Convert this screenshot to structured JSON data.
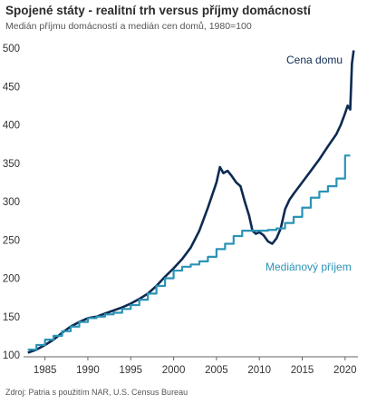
{
  "chart_data": {
    "type": "line",
    "title": "Spojené státy - realitní trh versus příjmy domácností",
    "subtitle": "Medián příjmu domácností a medián cen domů, 1980=100",
    "source": "Zdroj: Patria s použitím NAR, U.S. Census Bureau",
    "xlabel": "",
    "ylabel": "",
    "xlim": [
      1982.5,
      2021.5
    ],
    "ylim": [
      100,
      500
    ],
    "xticks": [
      1985,
      1990,
      1995,
      2000,
      2005,
      2010,
      2015,
      2020
    ],
    "yticks": [
      100,
      150,
      200,
      250,
      300,
      350,
      400,
      450,
      500
    ],
    "grid": false,
    "colors": {
      "house": "#0d2a52",
      "income": "#2a93b6"
    },
    "series": [
      {
        "name": "Cena domu",
        "style": "line",
        "x": [
          1983,
          1984,
          1985,
          1986,
          1987,
          1988,
          1989,
          1990,
          1991,
          1992,
          1993,
          1994,
          1995,
          1996,
          1997,
          1998,
          1999,
          2000,
          2001,
          2002,
          2003,
          2004,
          2005,
          2005.4,
          2005.8,
          2006.3,
          2006.8,
          2007.3,
          2007.8,
          2008.3,
          2008.8,
          2009.2,
          2009.6,
          2010,
          2010.5,
          2011,
          2011.5,
          2012,
          2012.5,
          2013,
          2013.5,
          2014,
          2015,
          2016,
          2017,
          2018,
          2019,
          2019.5,
          2020,
          2020.3,
          2020.6,
          2020.8,
          2021
        ],
        "values": [
          103,
          107,
          113,
          120,
          129,
          137,
          143,
          148,
          150,
          154,
          158,
          162,
          167,
          173,
          180,
          190,
          202,
          213,
          225,
          240,
          262,
          292,
          325,
          345,
          337,
          340,
          333,
          325,
          320,
          300,
          282,
          262,
          258,
          260,
          256,
          248,
          245,
          252,
          265,
          290,
          302,
          310,
          325,
          340,
          355,
          372,
          388,
          400,
          415,
          425,
          420,
          480,
          497
        ]
      },
      {
        "name": "Mediánový příjem",
        "style": "step",
        "x": [
          1983,
          1984,
          1985,
          1986,
          1987,
          1988,
          1989,
          1990,
          1991,
          1992,
          1993,
          1994,
          1995,
          1996,
          1997,
          1998,
          1999,
          2000,
          2001,
          2002,
          2003,
          2004,
          2005,
          2006,
          2007,
          2008,
          2009,
          2010,
          2011,
          2012,
          2013,
          2014,
          2015,
          2016,
          2017,
          2018,
          2019,
          2020
        ],
        "values": [
          107,
          113,
          120,
          125,
          131,
          137,
          143,
          148,
          150,
          153,
          155,
          160,
          165,
          172,
          180,
          190,
          200,
          210,
          215,
          218,
          222,
          228,
          238,
          245,
          255,
          262,
          262,
          262,
          263,
          265,
          272,
          280,
          292,
          305,
          313,
          320,
          330,
          360
        ]
      }
    ]
  }
}
